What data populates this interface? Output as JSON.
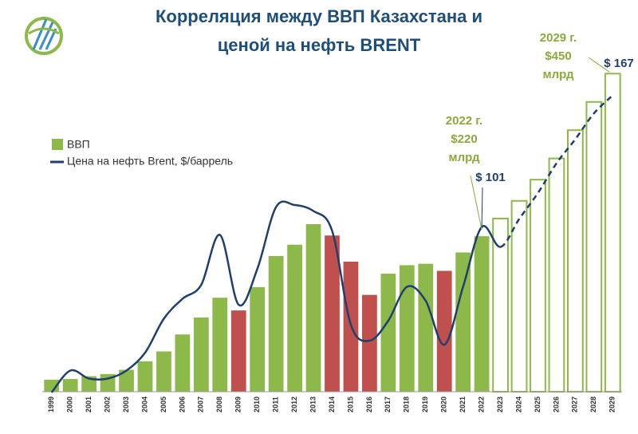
{
  "chart_data": {
    "type": "bar-line",
    "title": [
      "Корреляция между ВВП Казахстана и",
      "ценой на нефть BRENT"
    ],
    "categories": [
      "1999",
      "2000",
      "2001",
      "2002",
      "2003",
      "2004",
      "2005",
      "2006",
      "2007",
      "2008",
      "2009",
      "2010",
      "2011",
      "2012",
      "2013",
      "2014",
      "2015",
      "2016",
      "2017",
      "2018",
      "2019",
      "2020",
      "2021",
      "2022",
      "2023",
      "2024",
      "2025",
      "2026",
      "2027",
      "2028",
      "2029"
    ],
    "forecast_from": "2023",
    "series": [
      {
        "name": "ВВП",
        "color": "#8db84a",
        "colors": [
          "#8db84a",
          "#8db84a",
          "#8db84a",
          "#8db84a",
          "#8db84a",
          "#8db84a",
          "#8db84a",
          "#8db84a",
          "#8db84a",
          "#8db84a",
          "#c0504d",
          "#8db84a",
          "#8db84a",
          "#8db84a",
          "#8db84a",
          "#c0504d",
          "#c0504d",
          "#c0504d",
          "#8db84a",
          "#8db84a",
          "#8db84a",
          "#c0504d",
          "#8db84a",
          "#8db84a",
          "#8db84a",
          "#8db84a",
          "#8db84a",
          "#8db84a",
          "#8db84a",
          "#8db84a",
          "#8db84a"
        ],
        "values": [
          17,
          18,
          22,
          25,
          31,
          43,
          57,
          81,
          105,
          133,
          115,
          148,
          192,
          208,
          237,
          221,
          184,
          137,
          167,
          179,
          181,
          171,
          197,
          220,
          245,
          270,
          300,
          330,
          370,
          410,
          450
        ]
      },
      {
        "name": "Цена на нефть Brent, $/баррель",
        "color": "#1f3f6e",
        "values": [
          18,
          29,
          25,
          25,
          29,
          38,
          55,
          65,
          72,
          97,
          62,
          80,
          111,
          112,
          109,
          99,
          52,
          44,
          54,
          71,
          64,
          42,
          71,
          101,
          91,
          105,
          118,
          133,
          145,
          158,
          167
        ]
      }
    ],
    "annotations": [
      {
        "lines": [
          "2022 г.",
          "$220",
          "млрд"
        ],
        "color": "#8aaa3c"
      },
      {
        "lines": [
          "$ 101"
        ],
        "color": "#1f3f6e"
      },
      {
        "lines": [
          "2029 г.",
          "$450",
          "млрд"
        ],
        "color": "#8aaa3c"
      },
      {
        "lines": [
          "$ 167"
        ],
        "color": "#1f3f6e"
      }
    ]
  }
}
